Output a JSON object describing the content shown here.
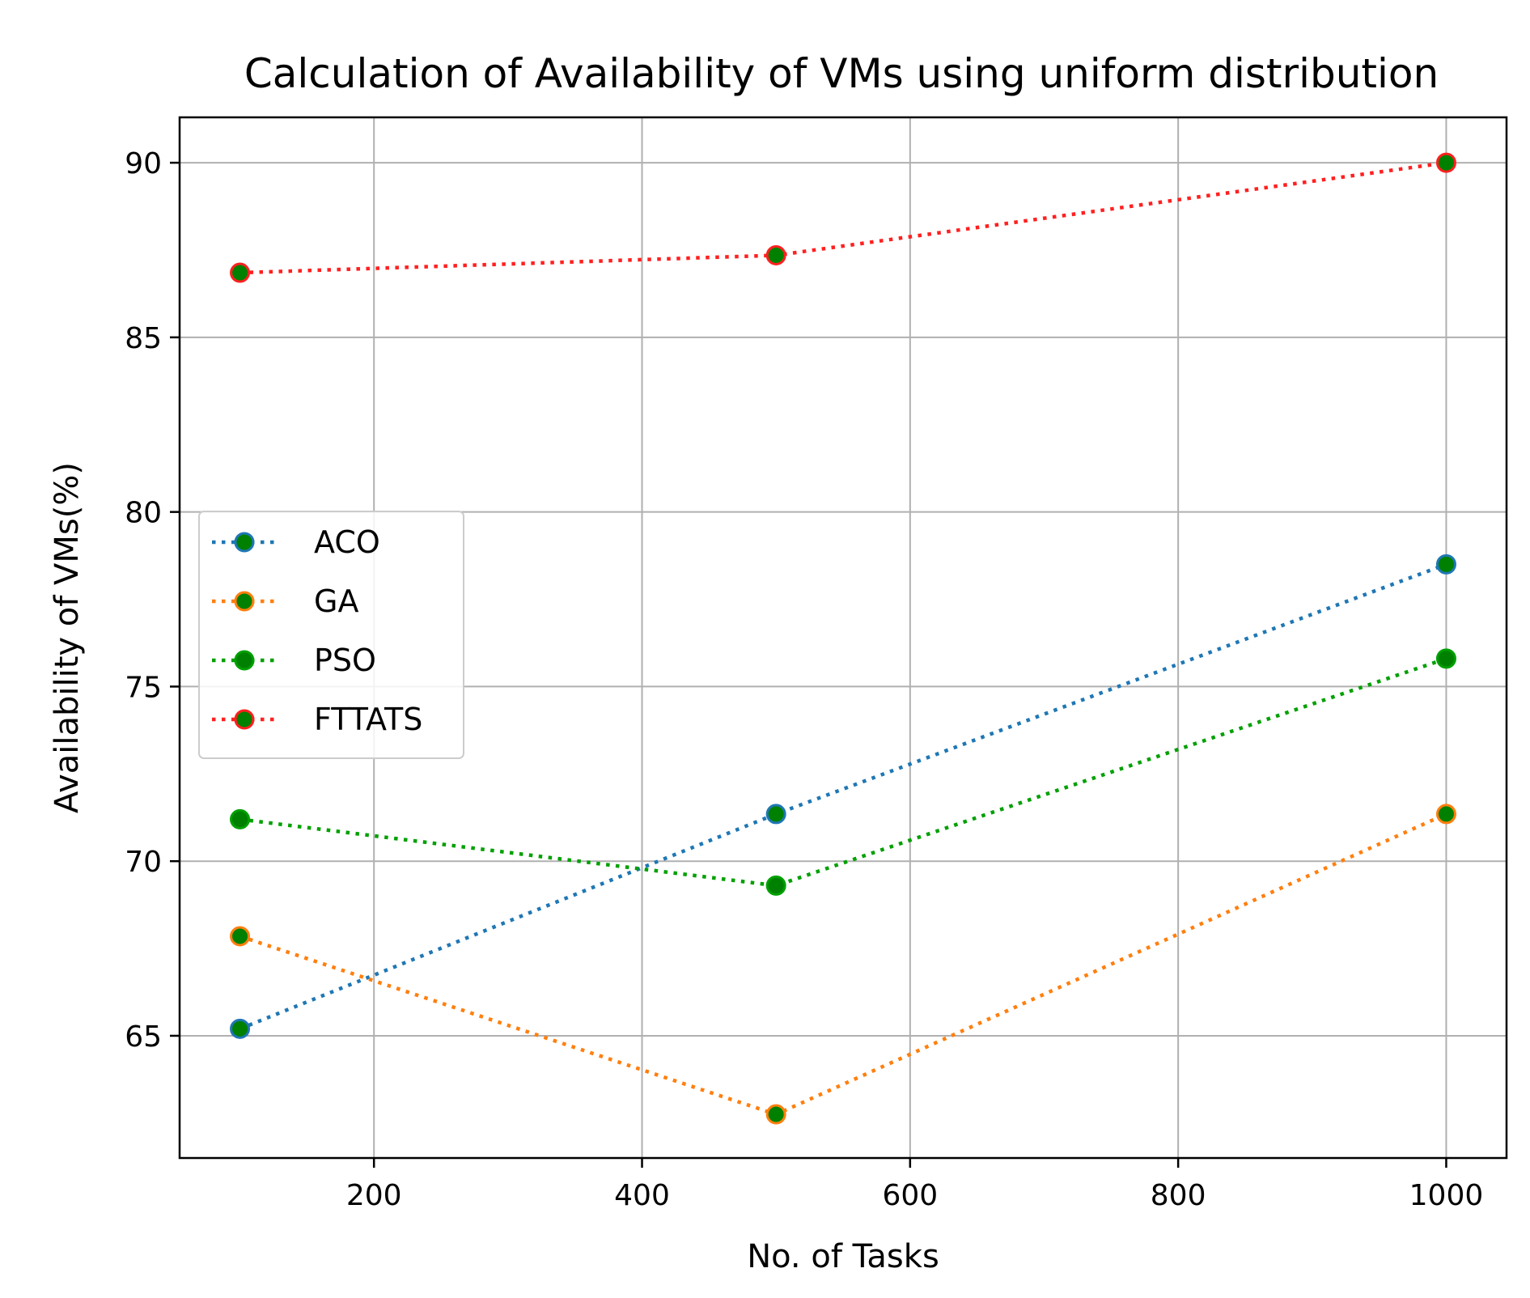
{
  "chart_data": {
    "type": "line",
    "title": "Calculation of Availability of VMs using uniform distribution",
    "xlabel": "No. of Tasks",
    "ylabel": "Availability of VMs(%)",
    "x": [
      100,
      500,
      1000
    ],
    "xlim": [
      55,
      1045
    ],
    "ylim": [
      61.5,
      91.3
    ],
    "xticks": [
      200,
      400,
      600,
      800,
      1000
    ],
    "yticks": [
      65,
      70,
      75,
      80,
      85,
      90
    ],
    "grid": true,
    "legend_position": "center-left",
    "marker_fill": "#008000",
    "series": [
      {
        "name": "ACO",
        "color": "#1f77b4",
        "values": [
          65.2,
          71.35,
          78.5
        ]
      },
      {
        "name": "GA",
        "color": "#ff7f0e",
        "values": [
          67.85,
          62.75,
          71.35
        ]
      },
      {
        "name": "PSO",
        "color": "#00a000",
        "values": [
          71.2,
          69.3,
          75.8
        ]
      },
      {
        "name": "FTTATS",
        "color": "#ff2020",
        "values": [
          86.85,
          87.35,
          90.0
        ]
      }
    ]
  }
}
